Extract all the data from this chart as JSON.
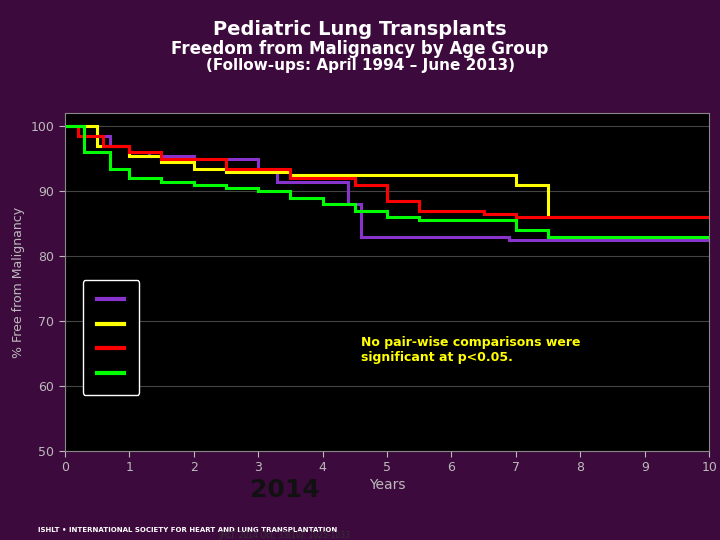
{
  "title_line1": "Pediatric Lung Transplants",
  "title_line2": "Freedom from Malignancy by Age Group",
  "title_line3": "(Follow-ups: April 1994 – June 2013)",
  "xlabel": "Years",
  "ylabel": "% Free from Malignancy",
  "xlim": [
    0,
    10
  ],
  "ylim": [
    50,
    102
  ],
  "yticks": [
    50,
    60,
    70,
    80,
    90,
    100
  ],
  "xticks": [
    0,
    1,
    2,
    3,
    4,
    5,
    6,
    7,
    8,
    9,
    10
  ],
  "background_color": "#000000",
  "outer_background": "#3d0a3d",
  "title_color": "#ffffff",
  "axis_color": "#888888",
  "tick_color": "#bbbbbb",
  "annotation_text": "No pair-wise comparisons were\nsignificant at p<0.05.",
  "annotation_color": "#ffff00",
  "grid_color": "#444444",
  "curves": {
    "purple": {
      "color": "#8833cc",
      "x": [
        0,
        0.3,
        0.3,
        0.7,
        0.7,
        1.0,
        1.0,
        1.3,
        1.3,
        2.0,
        2.0,
        3.0,
        3.0,
        3.3,
        3.3,
        4.4,
        4.4,
        4.6,
        4.6,
        6.9,
        6.9,
        10.0
      ],
      "y": [
        100,
        100,
        98.5,
        98.5,
        97,
        97,
        96,
        96,
        95.5,
        95.5,
        95,
        95,
        93.5,
        93.5,
        91.5,
        91.5,
        88,
        88,
        83,
        83,
        82.5,
        82.5
      ]
    },
    "yellow": {
      "color": "#ffff00",
      "x": [
        0,
        0.5,
        0.5,
        1.0,
        1.0,
        1.5,
        1.5,
        2.0,
        2.0,
        2.5,
        2.5,
        3.5,
        3.5,
        7.0,
        7.0,
        7.5,
        7.5,
        10.0
      ],
      "y": [
        100,
        100,
        97,
        97,
        95.5,
        95.5,
        94.5,
        94.5,
        93.5,
        93.5,
        93,
        93,
        92.5,
        92.5,
        91,
        91,
        86,
        86
      ]
    },
    "red": {
      "color": "#ff0000",
      "x": [
        0,
        0.2,
        0.2,
        0.6,
        0.6,
        1.0,
        1.0,
        1.5,
        1.5,
        2.5,
        2.5,
        3.5,
        3.5,
        4.5,
        4.5,
        5.0,
        5.0,
        5.5,
        5.5,
        6.5,
        6.5,
        7.0,
        7.0,
        10.0
      ],
      "y": [
        100,
        100,
        98.5,
        98.5,
        97,
        97,
        96,
        96,
        95,
        95,
        93.5,
        93.5,
        92,
        92,
        91,
        91,
        88.5,
        88.5,
        87,
        87,
        86.5,
        86.5,
        86,
        86
      ]
    },
    "green": {
      "color": "#00ff00",
      "x": [
        0,
        0.3,
        0.3,
        0.7,
        0.7,
        1.0,
        1.0,
        1.5,
        1.5,
        2.0,
        2.0,
        2.5,
        2.5,
        3.0,
        3.0,
        3.5,
        3.5,
        4.0,
        4.0,
        4.5,
        4.5,
        5.0,
        5.0,
        5.5,
        5.5,
        7.0,
        7.0,
        7.5,
        7.5,
        10.0
      ],
      "y": [
        100,
        100,
        96,
        96,
        93.5,
        93.5,
        92,
        92,
        91.5,
        91.5,
        91,
        91,
        90.5,
        90.5,
        90,
        90,
        89,
        89,
        88,
        88,
        87,
        87,
        86,
        86,
        85.5,
        85.5,
        84,
        84,
        83,
        83
      ]
    }
  },
  "legend_colors": [
    "#8833cc",
    "#ffff00",
    "#ff0000",
    "#00ff00"
  ],
  "banner_red": "#cc1111",
  "banner_blue": "#1a3a6a",
  "banner_white": "#ffffff"
}
